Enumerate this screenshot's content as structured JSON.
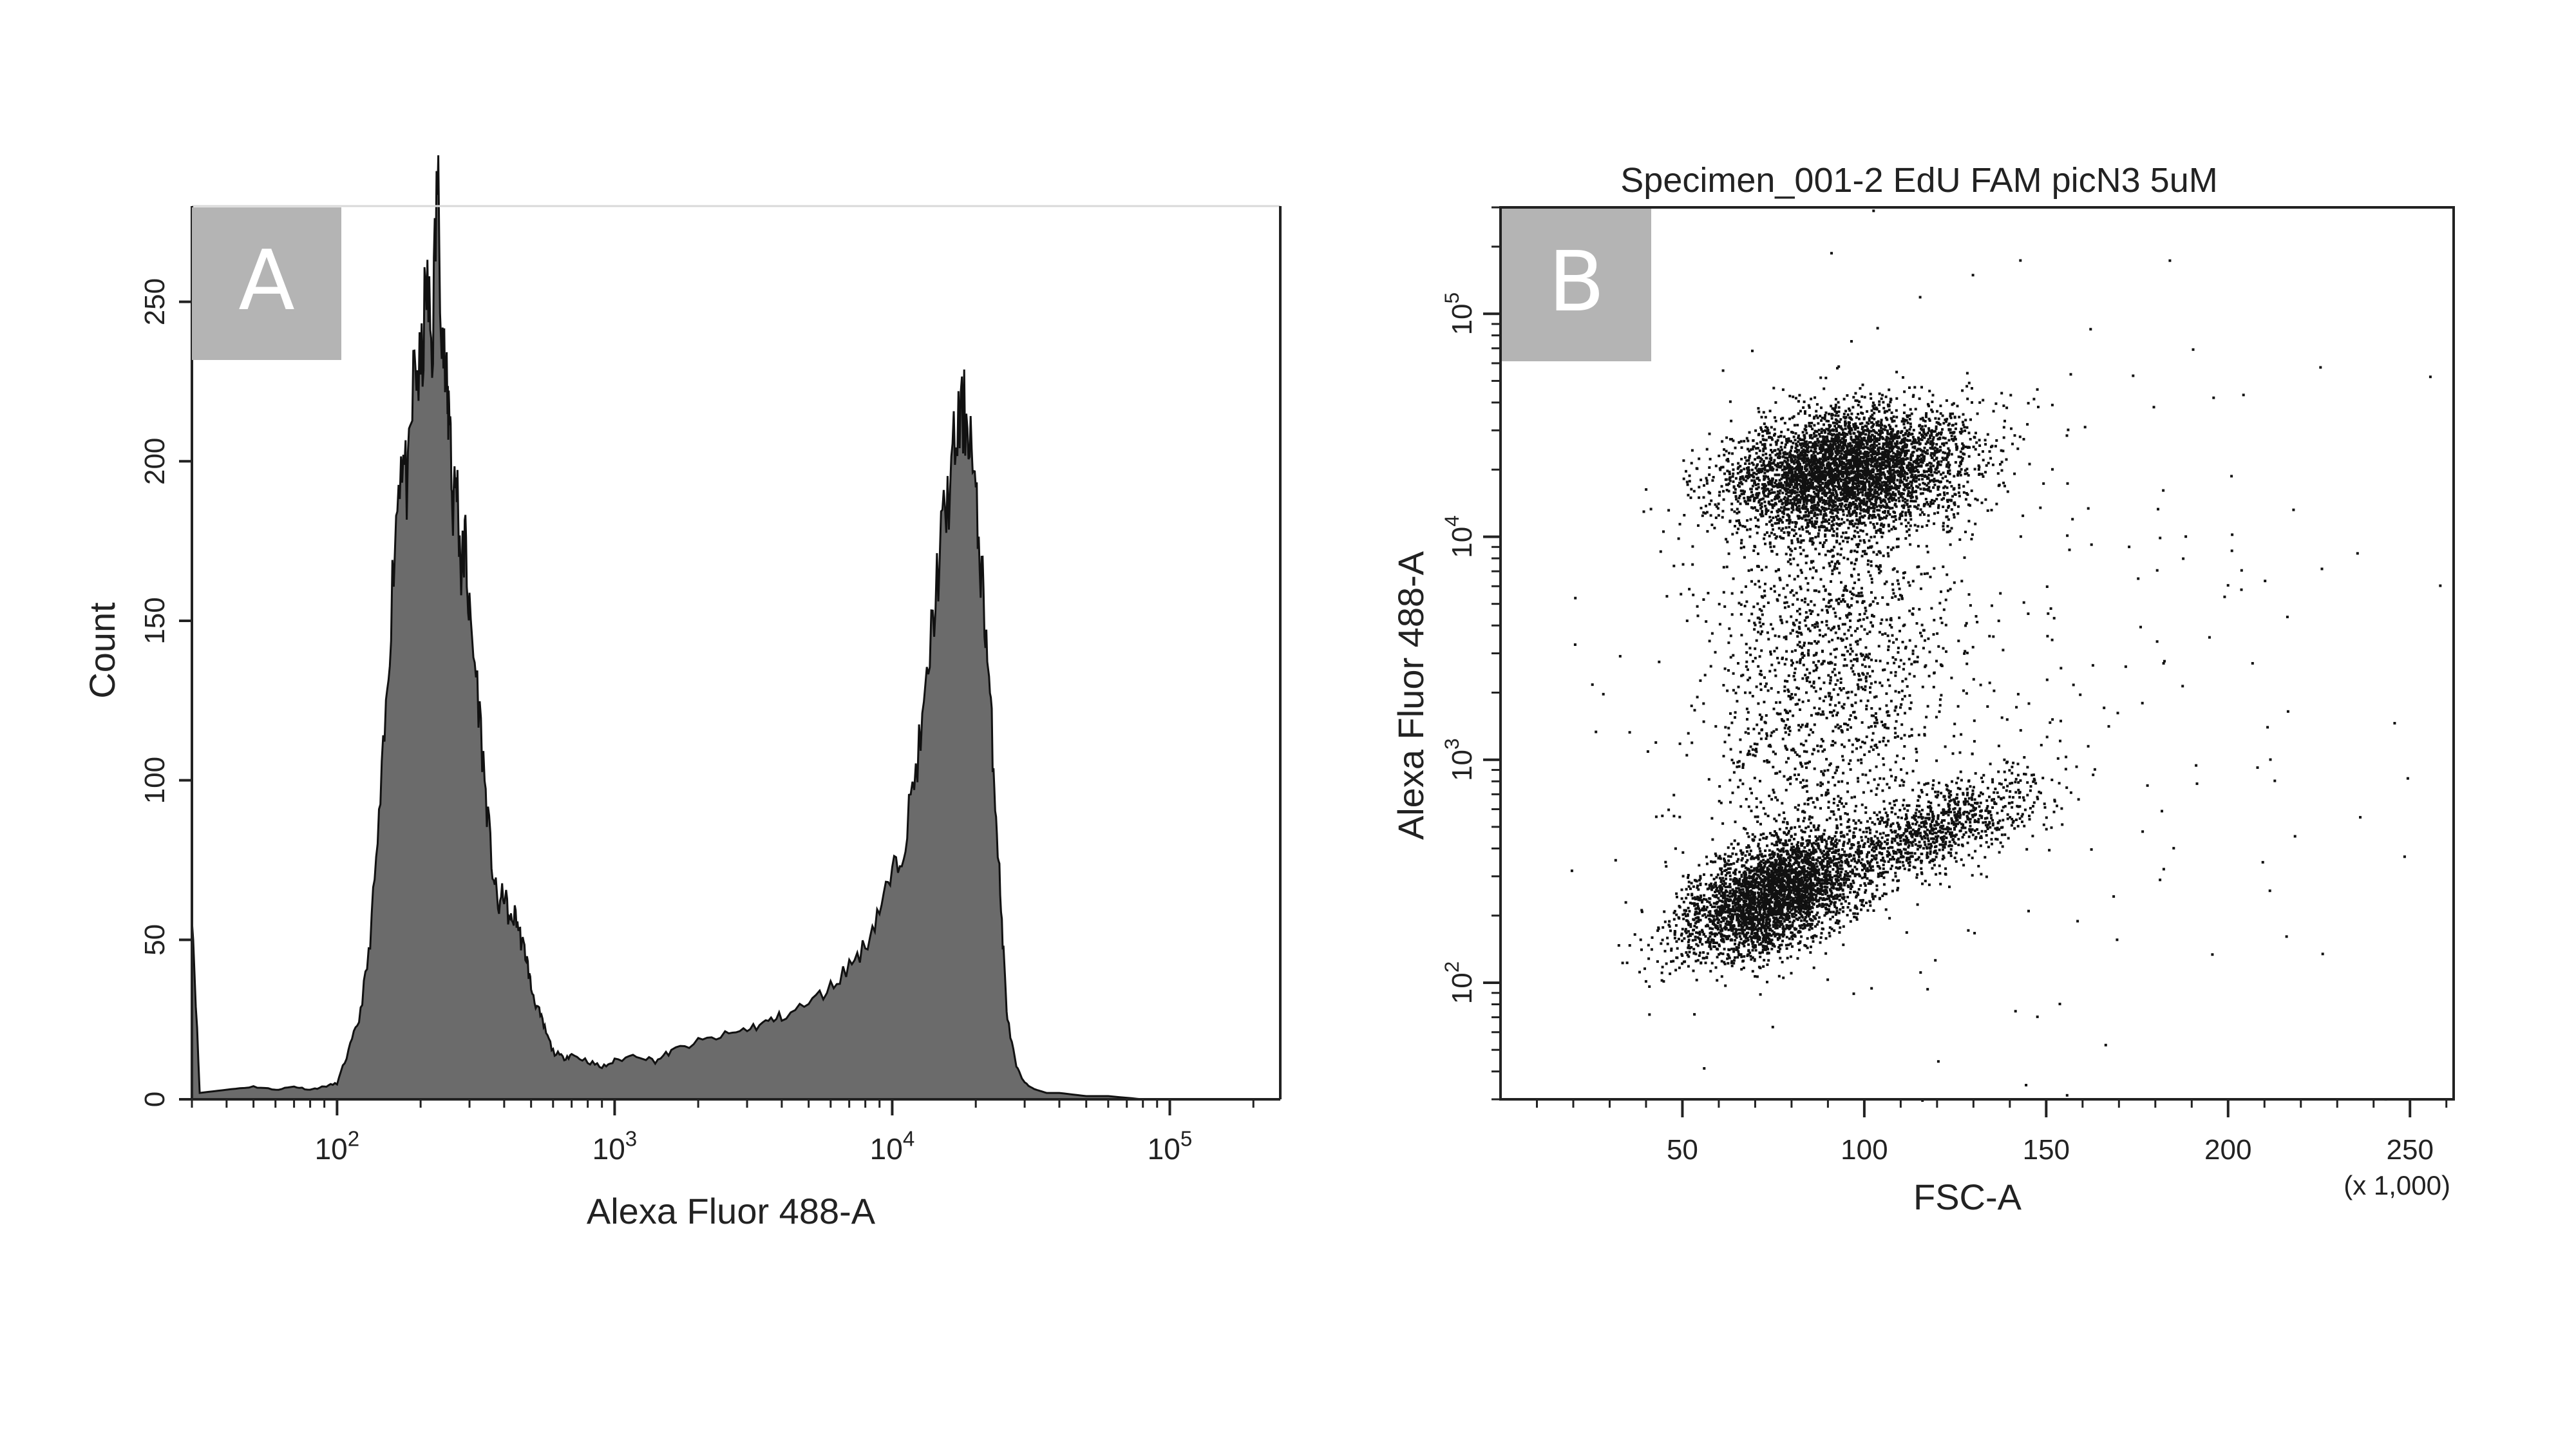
{
  "panels": {
    "a": {
      "letter": "A"
    },
    "b": {
      "letter": "B"
    }
  },
  "chart_data": [
    {
      "type": "area",
      "panel": "A",
      "title": "",
      "xlabel": "Alexa Fluor 488-A",
      "ylabel": "Count",
      "xscale": "log",
      "xlim": [
        30,
        250000
      ],
      "ylim": [
        0,
        280
      ],
      "yticks": [
        0,
        50,
        100,
        150,
        200,
        250
      ],
      "xticks": [
        {
          "value": 100,
          "base": "10",
          "exp": "2"
        },
        {
          "value": 1000,
          "base": "10",
          "exp": "3"
        },
        {
          "value": 10000,
          "base": "10",
          "exp": "4"
        },
        {
          "value": 100000,
          "base": "10",
          "exp": "5"
        }
      ],
      "fill_color": "#6b6b6b",
      "series": [
        {
          "x": [
            30,
            32,
            40,
            50,
            60,
            70,
            80,
            90,
            100,
            110,
            120,
            130,
            140,
            150,
            160,
            170,
            180,
            190,
            200,
            210,
            220,
            230,
            240,
            250,
            255,
            260,
            270,
            280,
            290,
            300,
            320,
            340,
            360,
            380,
            400,
            420,
            440,
            460,
            480,
            500,
            530,
            560,
            600,
            650,
            700,
            800,
            900,
            1000,
            1200,
            1400,
            1600,
            2000,
            2500,
            3000,
            3500,
            4000,
            5000,
            6000,
            7000,
            8000,
            9000,
            10000,
            11000,
            12000,
            13000,
            14000,
            15000,
            16000,
            17000,
            18000,
            19000,
            20000,
            21000,
            22000,
            23000,
            24000,
            25000,
            26000,
            28000,
            30000,
            33000,
            36000,
            40000,
            50000,
            60000,
            80000,
            100000,
            150000,
            200000
          ],
          "y": [
            60,
            2,
            3,
            4,
            3,
            4,
            3,
            4,
            5,
            15,
            25,
            45,
            80,
            120,
            170,
            205,
            190,
            230,
            225,
            255,
            235,
            290,
            240,
            215,
            220,
            185,
            195,
            165,
            175,
            150,
            130,
            100,
            75,
            60,
            65,
            55,
            58,
            50,
            45,
            35,
            28,
            22,
            15,
            13,
            14,
            12,
            10,
            12,
            14,
            12,
            15,
            18,
            20,
            22,
            24,
            26,
            30,
            35,
            42,
            48,
            60,
            70,
            80,
            100,
            120,
            150,
            175,
            190,
            208,
            215,
            212,
            185,
            165,
            140,
            110,
            80,
            50,
            25,
            10,
            5,
            3,
            2,
            2,
            1,
            1,
            0,
            0,
            0,
            0
          ]
        }
      ]
    },
    {
      "type": "scatter",
      "panel": "B",
      "title": "Specimen_001-2 EdU FAM picN3 5uM",
      "xlabel": "FSC-A",
      "ylabel": "Alexa Fluor 488-A",
      "xscale_note": "(x 1,000)",
      "xlim": [
        0,
        262
      ],
      "ylim": [
        30,
        300000
      ],
      "yscale": "log",
      "xticks": [
        50,
        100,
        150,
        200,
        250
      ],
      "yticks": [
        {
          "value": 100,
          "base": "10",
          "exp": "2"
        },
        {
          "value": 1000,
          "base": "10",
          "exp": "3"
        },
        {
          "value": 10000,
          "base": "10",
          "exp": "4"
        },
        {
          "value": 100000,
          "base": "10",
          "exp": "5"
        }
      ],
      "dot_color": "#111111",
      "populations": [
        {
          "name": "",
          "n": 4200,
          "cx": 95,
          "cy": 20000,
          "sx": 16,
          "sy_log": 0.14,
          "corr": 0.2
        },
        {
          "name": "",
          "n": 3400,
          "cx": 75,
          "cy": 250,
          "sx": 13,
          "sy_log": 0.14,
          "corr": 0.5
        },
        {
          "name": "",
          "n": 900,
          "cx": 120,
          "cy": 500,
          "sx": 14,
          "sy_log": 0.12,
          "corr": 0.6
        },
        {
          "name": "",
          "n": 1500,
          "cx": 90,
          "cy": 2500,
          "sx": 17,
          "sy_log": 0.45,
          "corr": 0.1
        },
        {
          "name": "",
          "n": 260,
          "cx": 130,
          "cy": 2000,
          "sx": 60,
          "sy_log": 0.9,
          "corr": 0.0
        }
      ]
    }
  ]
}
